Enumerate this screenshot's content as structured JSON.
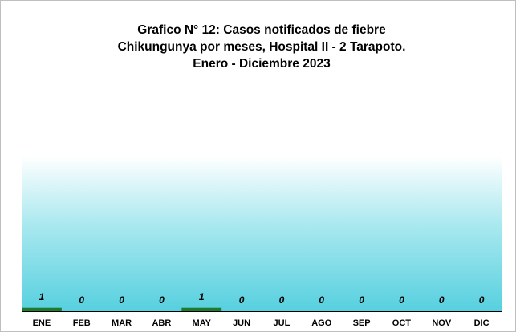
{
  "chart_data": {
    "type": "bar",
    "title": [
      "Grafico N° 12: Casos notificados de fiebre",
      "Chikungunya  por meses, Hospital II - 2 Tarapoto.",
      "Enero - Diciembre  2023"
    ],
    "categories": [
      "ENE",
      "FEB",
      "MAR",
      "ABR",
      "MAY",
      "JUN",
      "JUL",
      "AGO",
      "SEP",
      "OCT",
      "NOV",
      "DIC"
    ],
    "values": [
      1,
      0,
      0,
      0,
      1,
      0,
      0,
      0,
      0,
      0,
      0,
      0
    ],
    "color": "#1e7a2e",
    "ylim": [
      0,
      45
    ]
  }
}
